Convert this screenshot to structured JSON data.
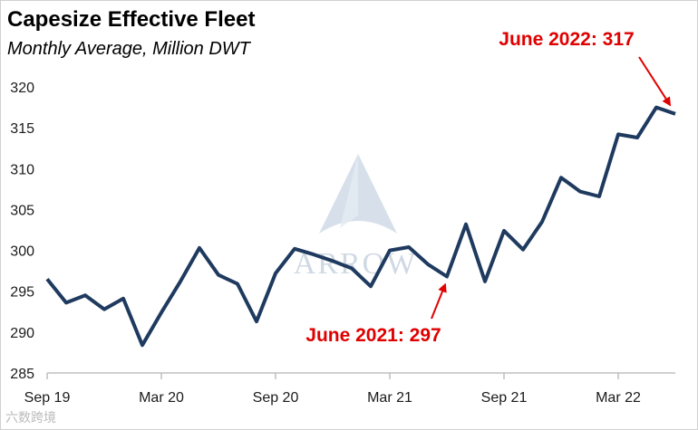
{
  "chart_data": {
    "type": "line",
    "title": "Capesize Effective Fleet",
    "subtitle": "Monthly Average, Million DWT",
    "xlabel": "",
    "ylabel": "",
    "x_tick_labels": [
      "Sep 19",
      "Mar 20",
      "Sep 20",
      "Mar 21",
      "Sep 21",
      "Mar 22"
    ],
    "y_ticks": [
      285,
      290,
      295,
      300,
      305,
      310,
      315,
      320
    ],
    "ylim": [
      285,
      320
    ],
    "grid": false,
    "legend": "none",
    "x": [
      "Sep 19",
      "Oct 19",
      "Nov 19",
      "Dec 19",
      "Jan 20",
      "Feb 20",
      "Mar 20",
      "Apr 20",
      "May 20",
      "Jun 20",
      "Jul 20",
      "Aug 20",
      "Sep 20",
      "Oct 20",
      "Nov 20",
      "Dec 20",
      "Jan 21",
      "Feb 21",
      "Mar 21",
      "Apr 21",
      "May 21",
      "Jun 21",
      "Jul 21",
      "Aug 21",
      "Sep 21",
      "Oct 21",
      "Nov 21",
      "Dec 21",
      "Jan 22",
      "Feb 22",
      "Mar 22",
      "Apr 22",
      "May 22",
      "Jun 22"
    ],
    "series": [
      {
        "color": "#1f3a5f",
        "values": [
          296.5,
          293.6,
          294.5,
          292.8,
          294.1,
          288.4,
          292.4,
          296.2,
          300.3,
          297.0,
          295.9,
          291.3,
          297.2,
          300.2,
          299.5,
          298.7,
          297.8,
          295.6,
          300.0,
          300.4,
          298.3,
          296.8,
          303.2,
          296.2,
          302.4,
          300.1,
          303.5,
          308.9,
          307.2,
          306.6,
          314.2,
          313.8,
          317.5,
          316.7
        ]
      }
    ],
    "annotations": [
      {
        "text": "June 2022: 317",
        "x": "Jun 22",
        "y": 316.7
      },
      {
        "text": "June 2021: 297",
        "x": "Jun 21",
        "y": 296.8
      }
    ],
    "colors": {
      "line": "#1f3a5f",
      "annotation": "#e00000",
      "axis": "#bfbfbf"
    }
  },
  "watermark": {
    "logo_text": "ARROW",
    "footer_text": "六数跨境"
  }
}
